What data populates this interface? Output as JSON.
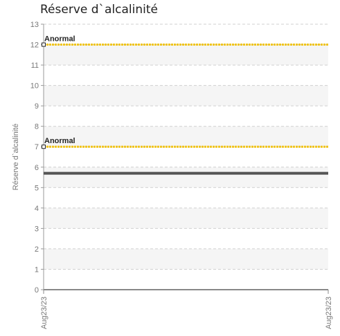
{
  "chart_data": {
    "type": "line",
    "title": "Réserve d`alcalinité",
    "ylabel": "Réserve d`alcalinité",
    "xlabel": "",
    "ylim": [
      0,
      13
    ],
    "yticks": [
      "0",
      "1",
      "2",
      "3",
      "4",
      "5",
      "6",
      "7",
      "8",
      "9",
      "10",
      "11",
      "12",
      "13"
    ],
    "x_categories": [
      "Aug23/23",
      "Aug23/23"
    ],
    "grid": true,
    "series": [
      {
        "values": [
          5.7,
          5.7
        ],
        "color": "#555555"
      }
    ],
    "reference_lines": [
      {
        "label": "Anormal",
        "value": 12,
        "color": "#f0c419"
      },
      {
        "label": "Anormal",
        "value": 7,
        "color": "#f0c419"
      }
    ],
    "band_colors": [
      "#ffffff",
      "#f5f5f5"
    ]
  }
}
